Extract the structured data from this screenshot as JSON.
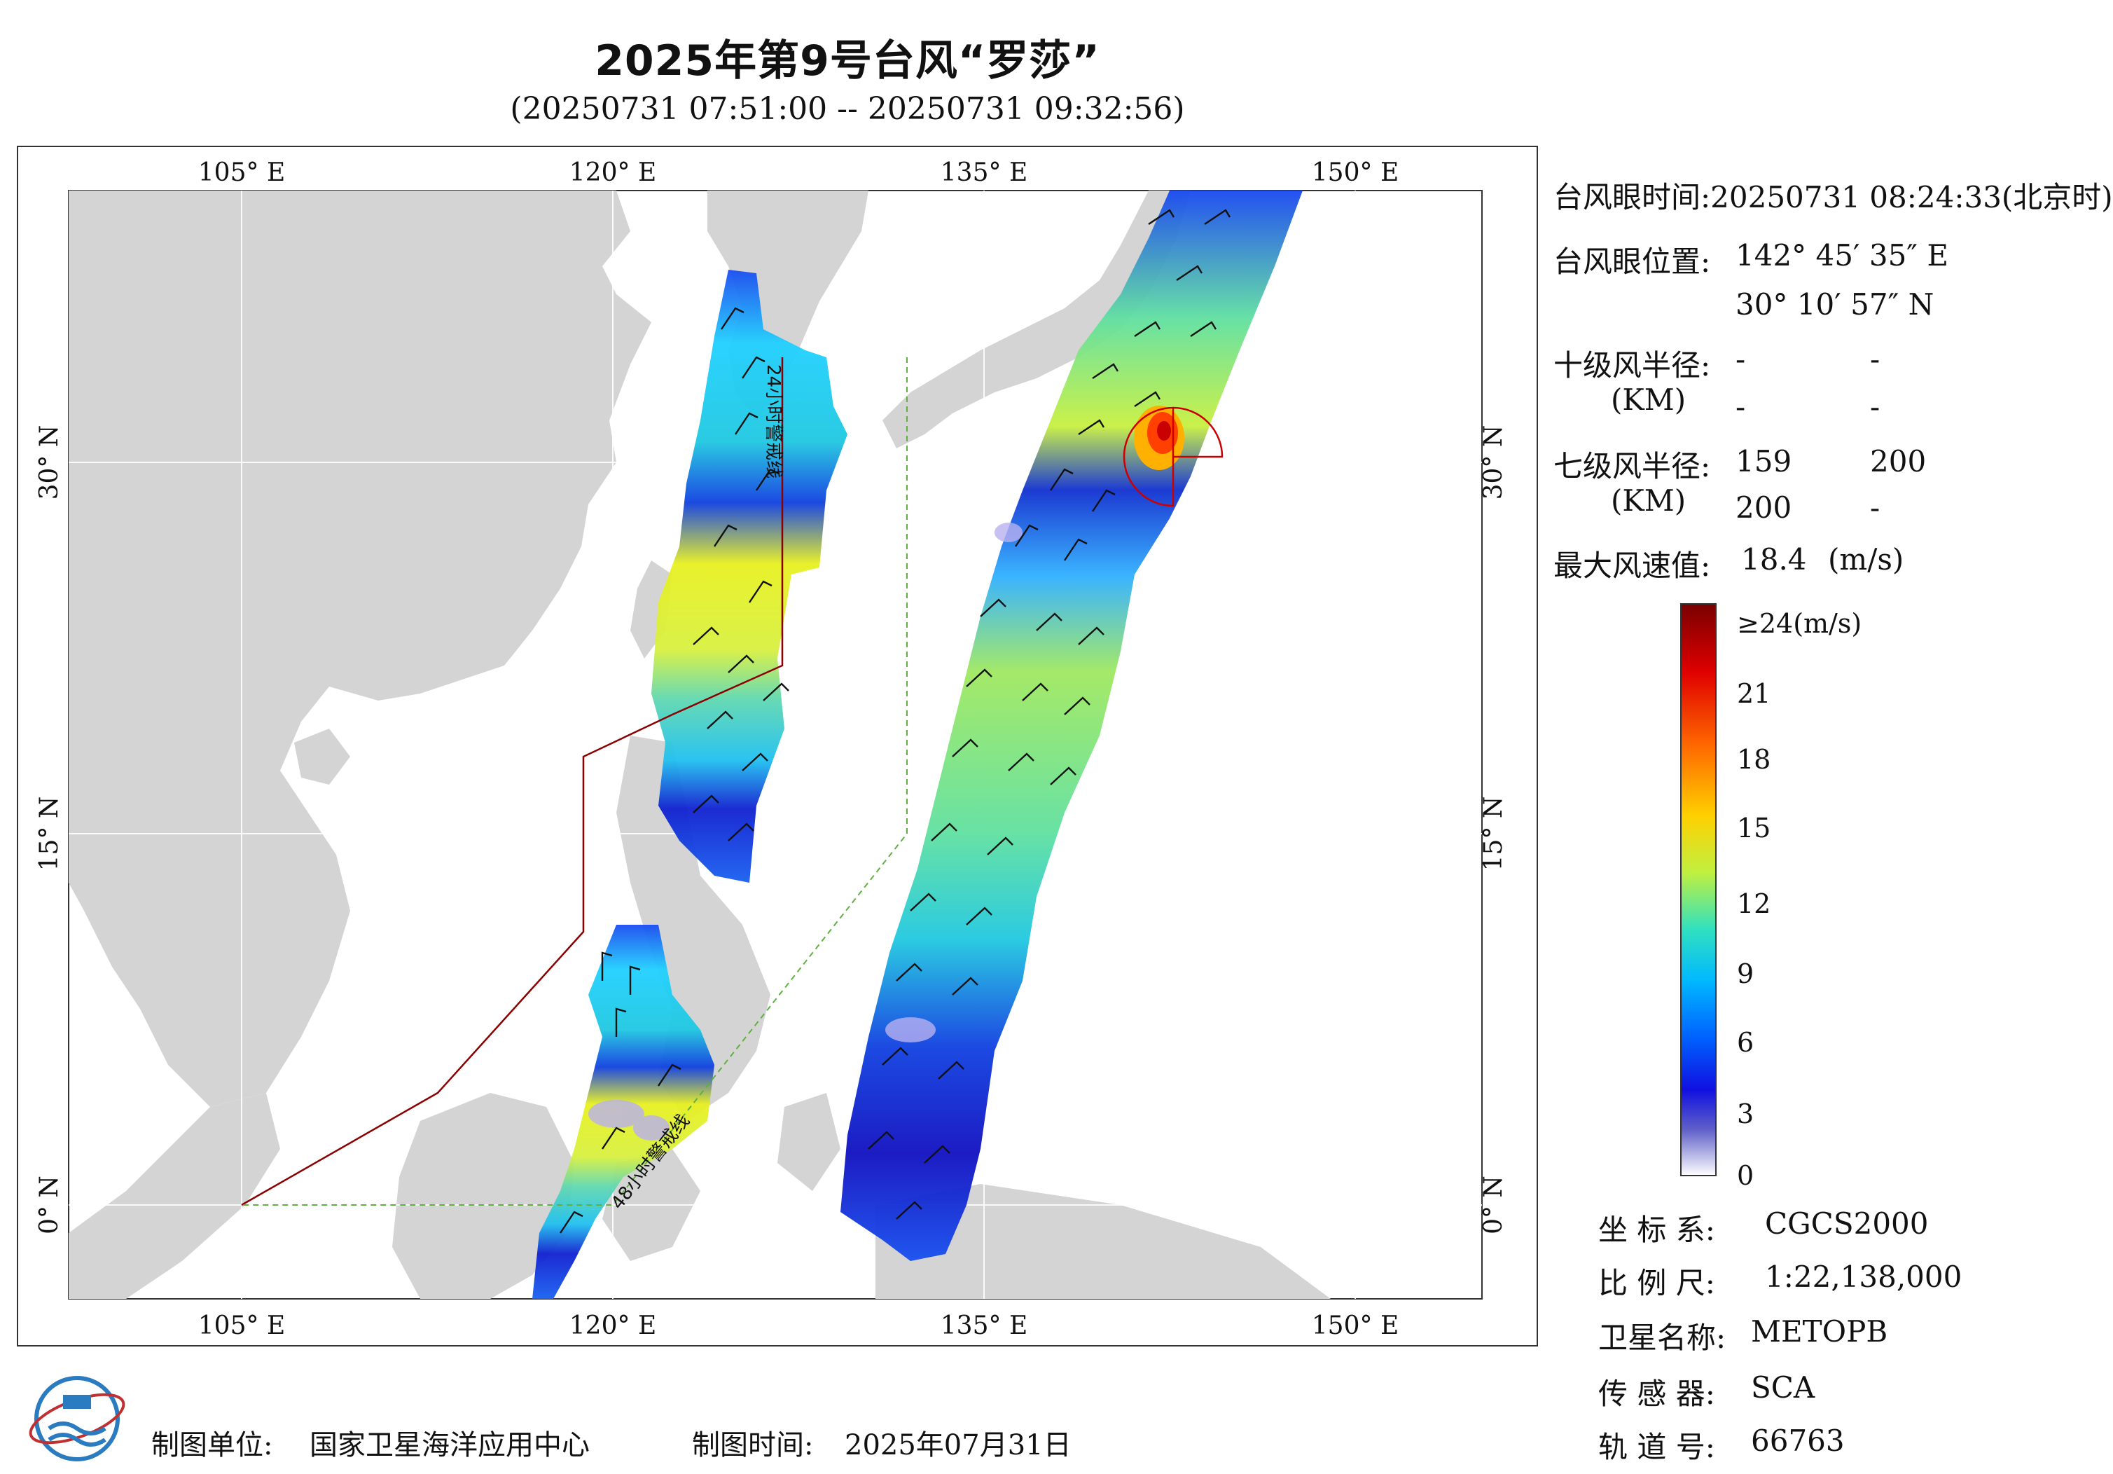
{
  "title": "2025年第9号台风“罗莎”",
  "subtitle": "(20250731 07:51:00 -- 20250731 09:32:56)",
  "axes": {
    "lon_ticks": [
      "105° E",
      "120° E",
      "135° E",
      "150° E"
    ],
    "lat_ticks": [
      "30° N",
      "15° N",
      "0° N"
    ]
  },
  "warning_lines": {
    "line24": "24小时警戒线",
    "line48": "48小时警戒线"
  },
  "info": {
    "eye_time_label": "台风眼时间:",
    "eye_time_value": "20250731 08:24:33(北京时)",
    "eye_pos_label": "台风眼位置:",
    "eye_lon": "142° 45′ 35″ E",
    "eye_lat": "30° 10′ 57″ N",
    "r10_label": "十级风半径:",
    "r10_unit": "(KM)",
    "r10_values": [
      "-",
      "-",
      "-",
      "-"
    ],
    "r7_label": "七级风半径:",
    "r7_unit": "(KM)",
    "r7_values": [
      "159",
      "200",
      "200",
      "-"
    ],
    "max_label": "最大风速值:",
    "max_value": "18.4",
    "max_unit": "(m/s)"
  },
  "colorbar": {
    "labels": [
      "≥24(m/s)",
      "21",
      "18",
      "15",
      "12",
      "9",
      "6",
      "3",
      "0"
    ],
    "colors": [
      "#7a0000",
      "#d40000",
      "#ff4400",
      "#ff9900",
      "#ffe000",
      "#c8f000",
      "#40e8a0",
      "#00e0ff",
      "#00a0ff",
      "#0050ff",
      "#1010e0",
      "#4040c0",
      "#8080d0",
      "#c8c8f0",
      "#ffffff"
    ]
  },
  "meta": {
    "crs_label": "坐 标 系:",
    "crs_value": "CGCS2000",
    "scale_label": "比 例 尺:",
    "scale_value": "1:22,138,000",
    "sat_label": "卫星名称:",
    "sat_value": "METOPB",
    "sensor_label": "传 感 器:",
    "sensor_value": "SCA",
    "orbit_label": "轨 道 号:",
    "orbit_value": "66763"
  },
  "footer": {
    "org_label": "制图单位:",
    "org_value": "国家卫星海洋应用中心",
    "date_label": "制图时间:",
    "date_value": "2025年07月31日"
  }
}
